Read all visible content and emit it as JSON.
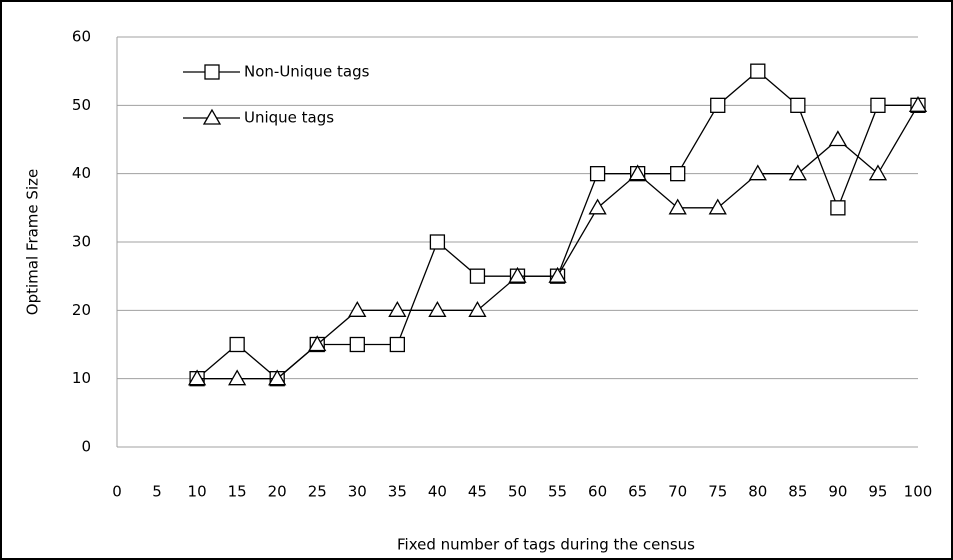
{
  "chart_data": {
    "type": "line",
    "x_label": "Fixed number of tags during the census",
    "y_label": "Optimal Frame Size",
    "x": [
      10,
      15,
      20,
      25,
      30,
      35,
      40,
      45,
      50,
      55,
      60,
      65,
      70,
      75,
      80,
      85,
      90,
      95,
      100
    ],
    "series": [
      {
        "name": "Non-Unique tags",
        "color": "#000000",
        "marker": "square",
        "values": [
          10,
          15,
          10,
          15,
          15,
          15,
          30,
          25,
          25,
          25,
          40,
          40,
          40,
          50,
          55,
          50,
          35,
          50,
          50
        ]
      },
      {
        "name": "Unique tags",
        "color": "#000000",
        "marker": "triangle",
        "values": [
          10,
          10,
          10,
          15,
          20,
          20,
          20,
          20,
          25,
          25,
          35,
          40,
          35,
          35,
          40,
          40,
          45,
          40,
          50
        ]
      }
    ],
    "xlim": [
      0,
      100
    ],
    "xticks": [
      0,
      5,
      10,
      15,
      20,
      25,
      30,
      35,
      40,
      45,
      50,
      55,
      60,
      65,
      70,
      75,
      80,
      85,
      90,
      95,
      100
    ],
    "ylim": [
      0,
      60
    ],
    "yticks": [
      0,
      10,
      20,
      30,
      40,
      50,
      60
    ],
    "grid": true,
    "legend": "upper left"
  }
}
